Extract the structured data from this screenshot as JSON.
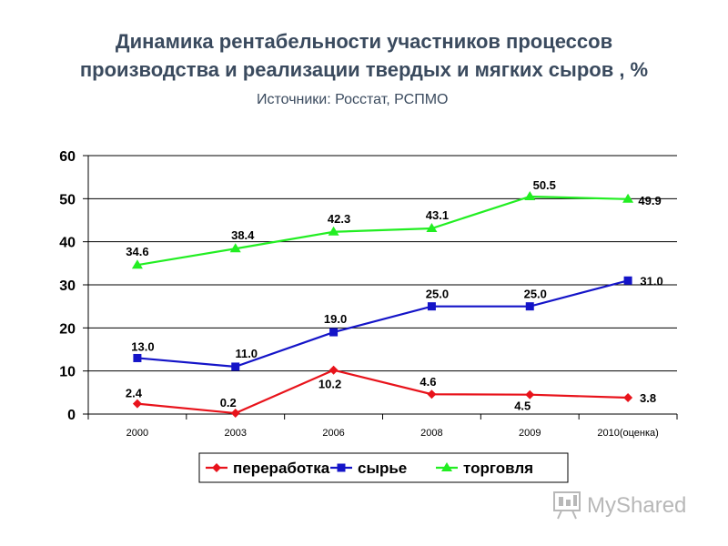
{
  "chart_data": {
    "type": "line",
    "title_lines": [
      "Динамика рентабельности участников процессов",
      "производства и реализации твердых и мягких сыров , %"
    ],
    "subtitle": "Источники: Росстат, РСПМО",
    "categories": [
      "2000",
      "2003",
      "2006",
      "2008",
      "2009",
      "2010(оценка)"
    ],
    "ylim": [
      0,
      60
    ],
    "yticks": [
      0,
      10,
      20,
      30,
      40,
      50,
      60
    ],
    "grid": true,
    "legend_position": "bottom",
    "series": [
      {
        "name": "переработка",
        "color": "#e8131b",
        "marker": "diamond",
        "values": [
          2.4,
          0.2,
          10.2,
          4.6,
          4.5,
          3.8
        ],
        "labels": [
          "2.4",
          "0.2",
          "10.2",
          "4.6",
          "4.5",
          "3.8"
        ]
      },
      {
        "name": "сырье",
        "color": "#1414c8",
        "marker": "square",
        "values": [
          13.0,
          11.0,
          19.0,
          25.0,
          25.0,
          31.0
        ],
        "labels": [
          "13.0",
          "11.0",
          "19.0",
          "25.0",
          "25.0",
          "31.0"
        ]
      },
      {
        "name": "торговля",
        "color": "#22ee22",
        "marker": "triangle",
        "values": [
          34.6,
          38.4,
          42.3,
          43.1,
          50.5,
          49.9
        ],
        "labels": [
          "34.6",
          "38.4",
          "42.3",
          "43.1",
          "50.5",
          "49.9"
        ]
      }
    ]
  },
  "watermark": {
    "text": "MyShared",
    "icon": "presentation-board-icon"
  }
}
